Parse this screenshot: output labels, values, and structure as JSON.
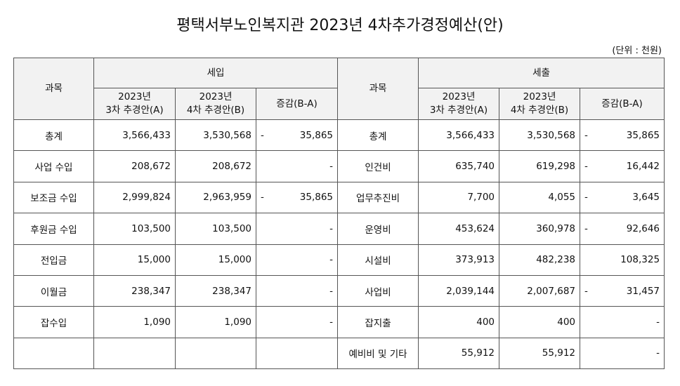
{
  "header": {
    "title": "평택서부노인복지관 2023년 4차추가경정예산(안)",
    "unit": "(단위 : 천원)"
  },
  "table": {
    "revenue": {
      "subject": "과목",
      "title": "세입",
      "columns": [
        "2023년\n3차 추경안(A)",
        "2023년\n4차 추경안(B)",
        "증감(B-A)"
      ],
      "rows": [
        [
          "총계",
          "3,566,433",
          "3,530,568",
          {
            "sign": "-",
            "value": "35,865"
          }
        ],
        [
          "사업 수입",
          "208,672",
          "208,672",
          "-"
        ],
        [
          "보조금 수입",
          "2,999,824",
          "2,963,959",
          {
            "sign": "-",
            "value": "35,865"
          }
        ],
        [
          "후원금 수입",
          "103,500",
          "103,500",
          "-"
        ],
        [
          "전입금",
          "15,000",
          "15,000",
          "-"
        ],
        [
          "이월금",
          "238,347",
          "238,347",
          "-"
        ],
        [
          "잡수입",
          "1,090",
          "1,090",
          "-"
        ]
      ]
    },
    "expenditure": {
      "subject": "과목",
      "title": "세출",
      "columns": [
        "2023년\n3차 추경안(A)",
        "2023년\n4차 추경안(B)",
        "증감(B-A)"
      ],
      "rows": [
        [
          "총계",
          "3,566,433",
          "3,530,568",
          {
            "sign": "-",
            "value": "35,865"
          }
        ],
        [
          "인건비",
          "635,740",
          "619,298",
          {
            "sign": "-",
            "value": "16,442"
          }
        ],
        [
          "업무추진비",
          "7,700",
          "4,055",
          {
            "sign": "-",
            "value": "3,645"
          }
        ],
        [
          "운영비",
          "453,624",
          "360,978",
          {
            "sign": "-",
            "value": "92,646"
          }
        ],
        [
          "시설비",
          "373,913",
          "482,238",
          "108,325"
        ],
        [
          "사업비",
          "2,039,144",
          "2,007,687",
          {
            "sign": "-",
            "value": "31,457"
          }
        ],
        [
          "잡지출",
          "400",
          "400",
          "-"
        ],
        [
          "예비비 및 기타",
          "55,912",
          "55,912",
          "-"
        ]
      ]
    }
  }
}
